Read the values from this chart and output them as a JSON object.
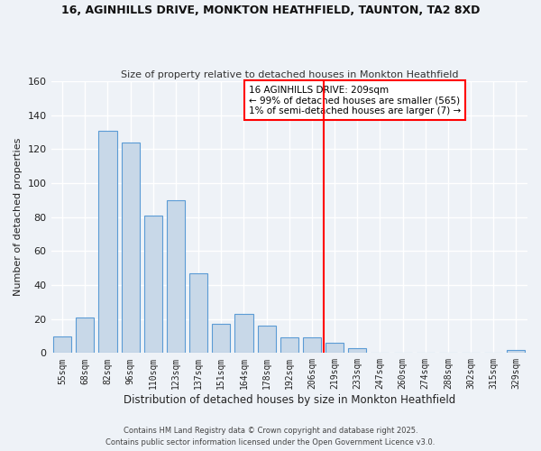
{
  "title1": "16, AGINHILLS DRIVE, MONKTON HEATHFIELD, TAUNTON, TA2 8XD",
  "title2": "Size of property relative to detached houses in Monkton Heathfield",
  "xlabel": "Distribution of detached houses by size in Monkton Heathfield",
  "ylabel": "Number of detached properties",
  "categories": [
    "55sqm",
    "68sqm",
    "82sqm",
    "96sqm",
    "110sqm",
    "123sqm",
    "137sqm",
    "151sqm",
    "164sqm",
    "178sqm",
    "192sqm",
    "206sqm",
    "219sqm",
    "233sqm",
    "247sqm",
    "260sqm",
    "274sqm",
    "288sqm",
    "302sqm",
    "315sqm",
    "329sqm"
  ],
  "values": [
    10,
    21,
    131,
    124,
    81,
    90,
    47,
    17,
    23,
    16,
    9,
    9,
    6,
    3,
    0,
    0,
    0,
    0,
    0,
    0,
    2
  ],
  "bar_color": "#c8d8e8",
  "bar_edge_color": "#5b9bd5",
  "vline_color": "red",
  "annotation_title": "16 AGINHILLS DRIVE: 209sqm",
  "annotation_line1": "← 99% of detached houses are smaller (565)",
  "annotation_line2": "1% of semi-detached houses are larger (7) →",
  "ylim": [
    0,
    160
  ],
  "yticks": [
    0,
    20,
    40,
    60,
    80,
    100,
    120,
    140,
    160
  ],
  "bg_color": "#eef2f7",
  "grid_color": "#ffffff",
  "footnote1": "Contains HM Land Registry data © Crown copyright and database right 2025.",
  "footnote2": "Contains public sector information licensed under the Open Government Licence v3.0."
}
